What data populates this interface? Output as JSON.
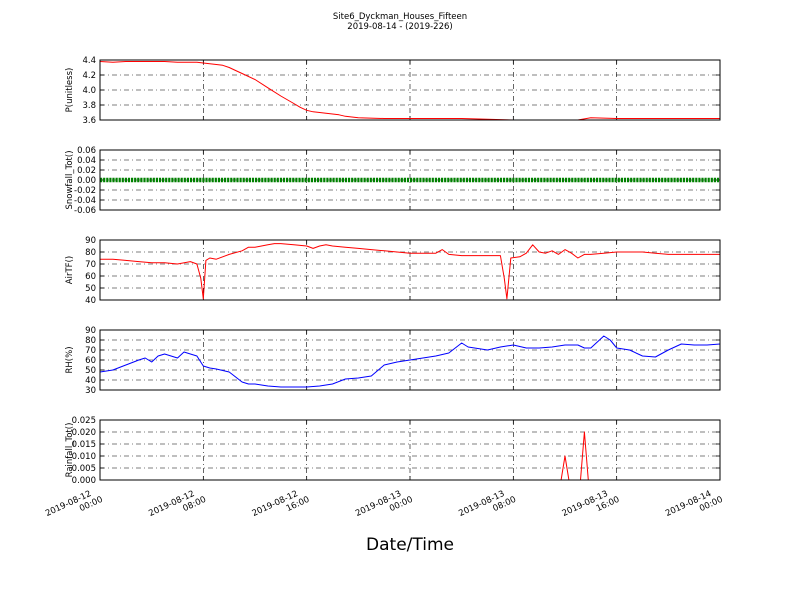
{
  "figure": {
    "title": "Site6_Dyckman_Houses_Fifteen",
    "subtitle": "2019-08-14 - (2019-226)",
    "xlabel": "Date/Time"
  },
  "colors": {
    "pressure": "#ff0000",
    "snowfall": "#008000",
    "airtf": "#ff0000",
    "rh": "#0000ff",
    "rainfall": "#ff0000",
    "grid": "#000000",
    "axes": "#000000"
  },
  "chart_data": [
    {
      "type": "line",
      "id": "pressure",
      "ylabel": "P(unitless)",
      "ylim": [
        3.6,
        4.4
      ],
      "yticks": [
        "4.4",
        "4.2",
        "4.0",
        "3.8",
        "3.6"
      ],
      "xlim": [
        0,
        48
      ],
      "grid": true,
      "series": [
        {
          "x": [
            0,
            1,
            2,
            3,
            4,
            5,
            6,
            7,
            7.5,
            8,
            8.5,
            9,
            9.5,
            10,
            10.5,
            11,
            12,
            13,
            14,
            15,
            15.5,
            16,
            16.5,
            17,
            17.5,
            18,
            18.5,
            19,
            20,
            22,
            24,
            26,
            27,
            28,
            30,
            32,
            34,
            35,
            36,
            37,
            38,
            40,
            42,
            44,
            46,
            48
          ],
          "y": [
            4.38,
            4.37,
            4.38,
            4.38,
            4.38,
            4.38,
            4.37,
            4.37,
            4.37,
            4.36,
            4.35,
            4.34,
            4.33,
            4.3,
            4.26,
            4.22,
            4.14,
            4.03,
            3.92,
            3.82,
            3.77,
            3.73,
            3.71,
            3.7,
            3.69,
            3.68,
            3.67,
            3.65,
            3.63,
            3.62,
            3.62,
            3.62,
            3.62,
            3.62,
            3.61,
            3.6,
            3.6,
            3.6,
            3.6,
            3.6,
            3.63,
            3.62,
            3.62,
            3.62,
            3.62,
            3.62
          ]
        }
      ]
    },
    {
      "type": "line",
      "id": "snowfall",
      "ylabel": "Snowfall_Tot()",
      "ylim": [
        -0.06,
        0.06
      ],
      "yticks": [
        "0.06",
        "0.04",
        "0.02",
        "0.00",
        "-0.02",
        "-0.04",
        "-0.06"
      ],
      "xlim": [
        0,
        48
      ],
      "grid": true,
      "marker": "point",
      "series": [
        {
          "x": [
            0,
            48
          ],
          "y": [
            0,
            0
          ]
        }
      ]
    },
    {
      "type": "line",
      "id": "airtf",
      "ylabel": "AirTF()",
      "ylim": [
        40,
        90
      ],
      "yticks": [
        "90",
        "80",
        "70",
        "60",
        "50",
        "40"
      ],
      "xlim": [
        0,
        48
      ],
      "grid": true,
      "series": [
        {
          "x": [
            0,
            1,
            2,
            3,
            4,
            5,
            6,
            7,
            7.5,
            7.8,
            8,
            8.2,
            8.5,
            9,
            10,
            11,
            11.5,
            12,
            12.5,
            13,
            13.5,
            14,
            15,
            16,
            16.5,
            17,
            17.5,
            18,
            19,
            20,
            21,
            22,
            23,
            24,
            25,
            26,
            26.5,
            27,
            28,
            29,
            30,
            31,
            31.3,
            31.5,
            31.8,
            32.5,
            33,
            33.5,
            34,
            34.5,
            35,
            35.5,
            36,
            36.5,
            37,
            37.5,
            38,
            39,
            40,
            41,
            42,
            43,
            44,
            45,
            46,
            47,
            48
          ],
          "y": [
            74,
            74,
            73,
            72,
            71,
            71,
            70,
            72,
            70,
            58,
            41,
            73,
            75,
            74,
            78,
            81,
            84,
            84,
            85,
            86,
            87,
            87,
            86,
            85,
            83,
            85,
            86,
            85,
            84,
            83,
            82,
            81,
            80,
            79,
            79,
            79,
            82,
            78,
            77,
            77,
            77,
            77,
            58,
            41,
            75,
            76,
            79,
            86,
            80,
            79,
            81,
            78,
            82,
            79,
            75,
            78,
            78,
            79,
            80,
            80,
            80,
            79,
            78,
            78,
            78,
            78,
            78
          ]
        }
      ]
    },
    {
      "type": "line",
      "id": "rh",
      "ylabel": "RH(%)",
      "ylim": [
        30,
        90
      ],
      "yticks": [
        "90",
        "80",
        "70",
        "60",
        "50",
        "40",
        "30"
      ],
      "xlim": [
        0,
        48
      ],
      "grid": true,
      "series": [
        {
          "x": [
            0,
            1,
            2,
            3,
            3.5,
            4,
            4.5,
            5,
            6,
            6.5,
            7,
            7.5,
            8,
            8.5,
            9,
            10,
            11,
            11.5,
            12,
            13,
            14,
            15,
            16,
            17,
            18,
            19,
            20,
            21,
            22,
            23,
            24,
            25,
            26,
            27,
            28,
            28.5,
            29,
            30,
            31,
            32,
            33,
            34,
            35,
            36,
            37,
            37.5,
            38,
            39,
            39.5,
            40,
            41,
            42,
            43,
            44,
            45,
            46,
            47,
            48
          ],
          "y": [
            48,
            50,
            55,
            60,
            62,
            58,
            64,
            66,
            62,
            68,
            66,
            64,
            54,
            52,
            51,
            48,
            38,
            36,
            36,
            34,
            33,
            33,
            33,
            34,
            36,
            41,
            42,
            44,
            55,
            58,
            60,
            62,
            64,
            67,
            77,
            73,
            72,
            70,
            73,
            75,
            72,
            72,
            73,
            75,
            75,
            72,
            72,
            84,
            80,
            72,
            70,
            64,
            63,
            70,
            76,
            75,
            75,
            76
          ]
        }
      ]
    },
    {
      "type": "line",
      "id": "rainfall",
      "ylabel": "Rainfall_Tot()",
      "ylim": [
        0.0,
        0.025
      ],
      "yticks": [
        "0.025",
        "0.020",
        "0.015",
        "0.010",
        "0.005",
        "0.000"
      ],
      "xlim": [
        0,
        48
      ],
      "xticks": [
        "2019-08-12\n00:00",
        "2019-08-12\n08:00",
        "2019-08-12\n16:00",
        "2019-08-13\n00:00",
        "2019-08-13\n08:00",
        "2019-08-13\n16:00",
        "2019-08-14\n00:00"
      ],
      "grid": true,
      "series": [
        {
          "x": [
            0,
            35.7,
            36.0,
            36.3,
            37.2,
            37.5,
            37.8,
            48
          ],
          "y": [
            0,
            0,
            0.01,
            0,
            0,
            0.02,
            0,
            0
          ]
        }
      ]
    }
  ]
}
